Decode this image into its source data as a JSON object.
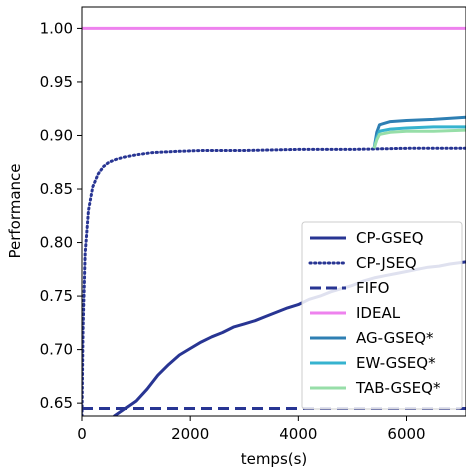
{
  "chart_data": {
    "type": "line",
    "xlabel": "temps(s)",
    "ylabel": "Performance",
    "xlim": [
      0,
      7100
    ],
    "ylim": [
      0.638,
      1.02
    ],
    "x_ticks": [
      0,
      2000,
      4000,
      6000
    ],
    "x_tick_labels": [
      "0",
      "2000",
      "4000",
      "6000"
    ],
    "y_ticks": [
      0.65,
      0.7,
      0.75,
      0.8,
      0.85,
      0.9,
      0.95,
      1.0
    ],
    "y_tick_labels": [
      "0.65",
      "0.70",
      "0.75",
      "0.80",
      "0.85",
      "0.90",
      "0.95",
      "1.00"
    ],
    "grid": false,
    "legend_position": "lower-right",
    "series": [
      {
        "name": "CP-GSEQ",
        "color": "#283593",
        "style": "solid",
        "x": [
          0,
          600,
          800,
          1000,
          1200,
          1400,
          1600,
          1800,
          2000,
          2200,
          2400,
          2600,
          2800,
          3000,
          3200,
          3400,
          3600,
          3800,
          4000,
          4200,
          4400,
          4600,
          4800,
          5000,
          5200,
          5400,
          5600,
          5800,
          6000,
          6200,
          6400,
          6600,
          6800,
          7100
        ],
        "y": [
          0.6,
          0.638,
          0.645,
          0.652,
          0.663,
          0.676,
          0.686,
          0.695,
          0.701,
          0.707,
          0.712,
          0.716,
          0.721,
          0.724,
          0.727,
          0.731,
          0.735,
          0.739,
          0.742,
          0.747,
          0.75,
          0.754,
          0.757,
          0.76,
          0.764,
          0.767,
          0.769,
          0.771,
          0.773,
          0.775,
          0.777,
          0.778,
          0.78,
          0.782
        ]
      },
      {
        "name": "CP-JSEQ",
        "color": "#283593",
        "style": "dotted",
        "x": [
          0,
          20,
          60,
          120,
          200,
          300,
          400,
          500,
          650,
          800,
          1000,
          1300,
          1700,
          2200,
          3000,
          4000,
          5000,
          6000,
          7100
        ],
        "y": [
          0.638,
          0.72,
          0.79,
          0.83,
          0.852,
          0.864,
          0.871,
          0.875,
          0.878,
          0.88,
          0.882,
          0.884,
          0.885,
          0.886,
          0.886,
          0.887,
          0.887,
          0.888,
          0.888
        ]
      },
      {
        "name": "FIFO",
        "color": "#283593",
        "style": "dashed",
        "x": [
          0,
          7100
        ],
        "y": [
          0.645,
          0.645
        ]
      },
      {
        "name": "IDEAL",
        "color": "#ee82ee",
        "style": "solid",
        "x": [
          0,
          7100
        ],
        "y": [
          1.0,
          1.0
        ]
      },
      {
        "name": "AG-GSEQ*",
        "color": "#2e7fb3",
        "style": "solid",
        "x": [
          5400,
          5450,
          5500,
          5700,
          6000,
          6500,
          7100
        ],
        "y": [
          0.888,
          0.903,
          0.91,
          0.913,
          0.914,
          0.915,
          0.917
        ]
      },
      {
        "name": "EW-GSEQ*",
        "color": "#36b3cf",
        "style": "solid",
        "x": [
          5400,
          5450,
          5500,
          5700,
          6000,
          6500,
          7100
        ],
        "y": [
          0.888,
          0.898,
          0.904,
          0.906,
          0.907,
          0.908,
          0.908
        ]
      },
      {
        "name": "TAB-GSEQ*",
        "color": "#97dea8",
        "style": "solid",
        "x": [
          5400,
          5450,
          5500,
          5700,
          6000,
          6500,
          7100
        ],
        "y": [
          0.888,
          0.896,
          0.901,
          0.903,
          0.904,
          0.904,
          0.905
        ]
      }
    ]
  }
}
